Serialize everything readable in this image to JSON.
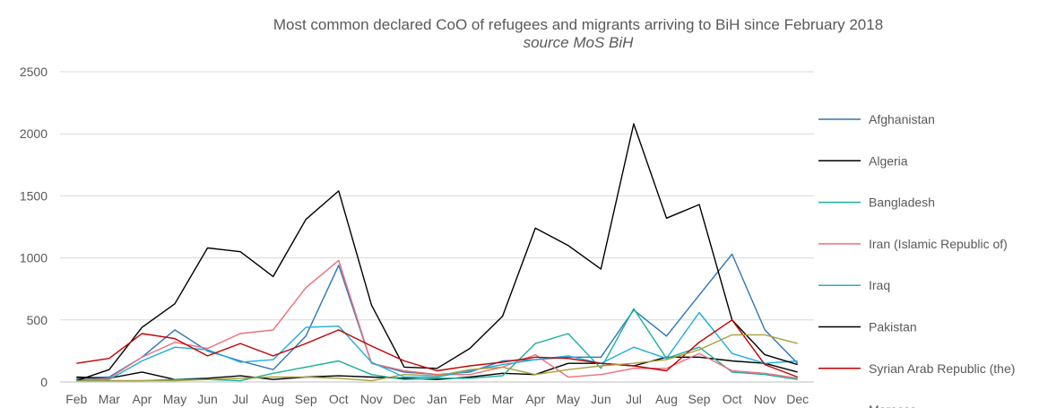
{
  "chart_data": {
    "type": "line",
    "title": "Most common declared CoO of refugees and migrants arriving to BiH since February 2018",
    "subtitle": "source MoS BiH",
    "xlabel": "",
    "ylabel": "",
    "ylim": [
      0,
      2500
    ],
    "yticks": [
      0,
      500,
      1000,
      1500,
      2000,
      2500
    ],
    "grid": true,
    "legend_position": "right",
    "categories": [
      "Feb",
      "Mar",
      "Apr",
      "May",
      "Jun",
      "Jul",
      "Aug",
      "Sep",
      "Oct",
      "Nov",
      "Dec",
      "Jan",
      "Feb",
      "Mar",
      "Apr",
      "May",
      "Jun",
      "Jul",
      "Aug",
      "Sep",
      "Oct",
      "Nov",
      "Dec"
    ],
    "series": [
      {
        "name": "Afghanistan",
        "color": "#2E75B6",
        "values": [
          30,
          40,
          200,
          420,
          250,
          170,
          100,
          370,
          940,
          150,
          80,
          60,
          80,
          170,
          180,
          200,
          200,
          580,
          370,
          700,
          1030,
          420,
          150
        ]
      },
      {
        "name": "Algeria",
        "color": "#000000",
        "values": [
          40,
          30,
          80,
          20,
          30,
          50,
          20,
          40,
          50,
          40,
          30,
          20,
          40,
          70,
          60,
          150,
          150,
          130,
          200,
          200,
          170,
          150,
          80
        ]
      },
      {
        "name": "Bangladesh",
        "color": "#1AAF9A",
        "values": [
          10,
          10,
          10,
          20,
          20,
          10,
          70,
          120,
          170,
          60,
          20,
          30,
          30,
          50,
          310,
          390,
          110,
          590,
          190,
          280,
          80,
          60,
          20
        ]
      },
      {
        "name": "Iran (Islamic Republic of)",
        "color": "#EE6D7A",
        "values": [
          20,
          30,
          200,
          320,
          270,
          390,
          420,
          760,
          980,
          150,
          90,
          60,
          60,
          120,
          220,
          40,
          60,
          110,
          110,
          230,
          90,
          70,
          30
        ]
      },
      {
        "name": "Iraq",
        "color": "#1EAEDB",
        "values": [
          20,
          20,
          170,
          280,
          260,
          160,
          180,
          440,
          450,
          160,
          40,
          40,
          90,
          140,
          180,
          210,
          150,
          280,
          190,
          560,
          230,
          150,
          170
        ]
      },
      {
        "name": "Pakistan",
        "color": "#000000",
        "values": [
          10,
          100,
          440,
          630,
          1080,
          1050,
          850,
          1310,
          1540,
          620,
          120,
          110,
          270,
          530,
          1240,
          1100,
          910,
          2080,
          1320,
          1430,
          500,
          220,
          140
        ]
      },
      {
        "name": "Syrian Arab Republic (the)",
        "color": "#C00000",
        "values": [
          150,
          190,
          390,
          350,
          210,
          310,
          210,
          310,
          420,
          290,
          170,
          90,
          130,
          160,
          200,
          190,
          150,
          130,
          90,
          320,
          500,
          140,
          40
        ]
      },
      {
        "name": "Morocco",
        "color": "#A8A03A",
        "values": [
          10,
          10,
          10,
          10,
          20,
          30,
          40,
          40,
          30,
          10,
          60,
          50,
          100,
          120,
          60,
          100,
          130,
          150,
          180,
          260,
          380,
          380,
          310
        ]
      }
    ]
  }
}
